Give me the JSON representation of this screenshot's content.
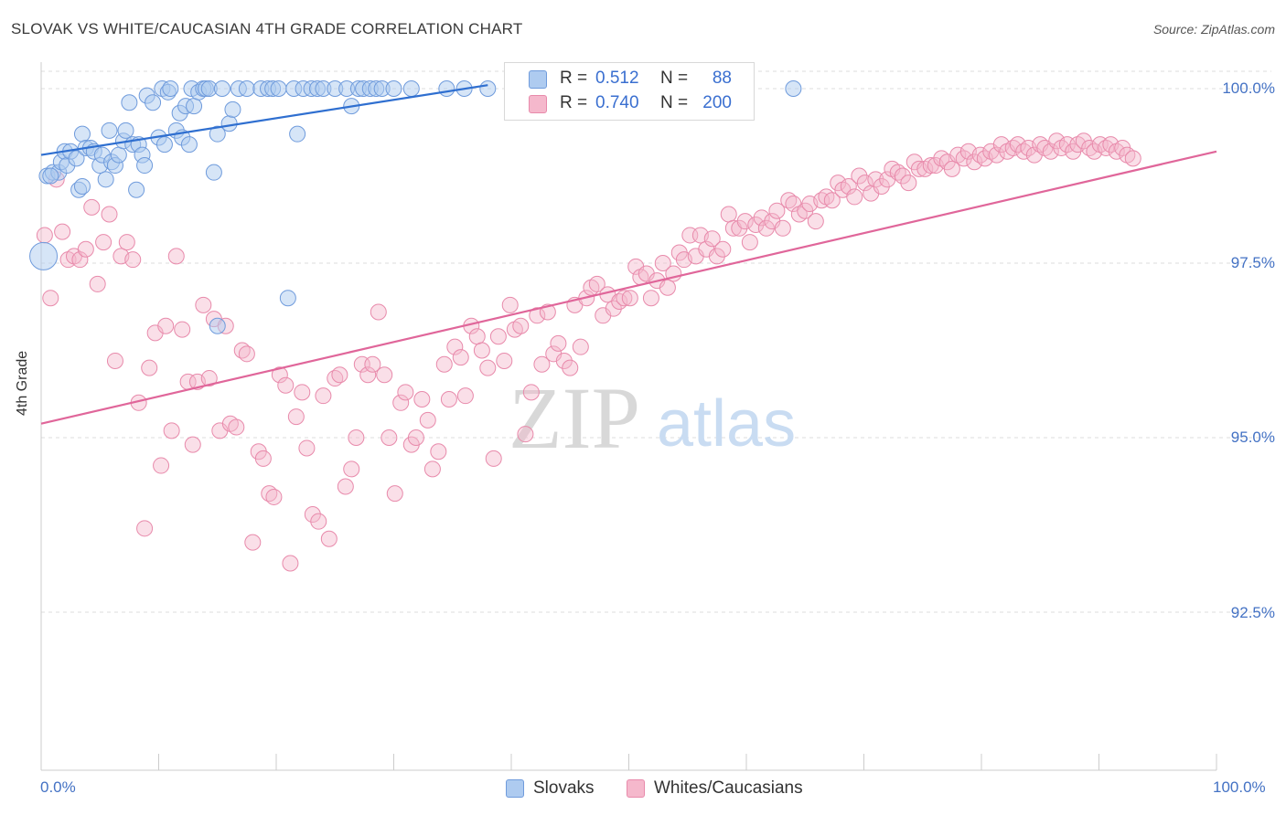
{
  "title": "SLOVAK VS WHITE/CAUCASIAN 4TH GRADE CORRELATION CHART",
  "source": "Source: ZipAtlas.com",
  "watermark": {
    "zip": "ZIP",
    "atlas": "atlas"
  },
  "colors": {
    "blue": "#4a7fd4",
    "blue_fill": "#aecbf0",
    "pink": "#e06090",
    "pink_fill": "#f5b8cc",
    "tick_text": "#4472c4",
    "grid": "#dddddd"
  },
  "legend": {
    "rows": [
      {
        "r_label": "R =",
        "r_value": "0.512",
        "n_label": "N =",
        "n_value": "88"
      },
      {
        "r_label": "R =",
        "r_value": "0.740",
        "n_label": "N =",
        "n_value": "200"
      }
    ]
  },
  "bottom_legend": [
    "Slovaks",
    "Whites/Caucasians"
  ],
  "chart_data": {
    "type": "scatter",
    "title": "SLOVAK VS WHITE/CAUCASIAN 4TH GRADE CORRELATION CHART",
    "xlabel": "",
    "ylabel": "4th Grade",
    "xlim": [
      0,
      100
    ],
    "ylim": [
      90.0,
      100.4
    ],
    "x_tick_labels": [
      "0.0%",
      "100.0%"
    ],
    "y_ticks": [
      100.0,
      97.5,
      95.0,
      92.5
    ],
    "y_tick_labels": [
      "100.0%",
      "97.5%",
      "95.0%",
      "92.5%"
    ],
    "series": [
      {
        "name": "Slovaks",
        "r": 0.512,
        "n": 88,
        "trend": {
          "x": [
            0,
            38
          ],
          "y": [
            99.05,
            100.05
          ]
        },
        "points": [
          [
            0.2,
            97.6
          ],
          [
            0.5,
            98.75
          ],
          [
            1.0,
            98.8
          ],
          [
            1.5,
            98.8
          ],
          [
            1.7,
            98.95
          ],
          [
            2.0,
            99.1
          ],
          [
            2.2,
            98.9
          ],
          [
            2.5,
            99.1
          ],
          [
            3.0,
            99.0
          ],
          [
            3.2,
            98.55
          ],
          [
            3.5,
            99.35
          ],
          [
            3.8,
            99.15
          ],
          [
            4.2,
            99.15
          ],
          [
            4.5,
            99.1
          ],
          [
            5.0,
            98.9
          ],
          [
            5.2,
            99.05
          ],
          [
            5.5,
            98.7
          ],
          [
            5.8,
            99.4
          ],
          [
            6.0,
            98.95
          ],
          [
            6.3,
            98.9
          ],
          [
            6.6,
            99.05
          ],
          [
            7.0,
            99.25
          ],
          [
            7.2,
            99.4
          ],
          [
            7.5,
            99.8
          ],
          [
            7.8,
            99.2
          ],
          [
            8.1,
            98.55
          ],
          [
            8.3,
            99.2
          ],
          [
            8.6,
            99.05
          ],
          [
            8.8,
            98.9
          ],
          [
            9.0,
            99.9
          ],
          [
            9.5,
            99.8
          ],
          [
            10.0,
            99.3
          ],
          [
            10.3,
            100.0
          ],
          [
            10.5,
            99.2
          ],
          [
            10.8,
            99.95
          ],
          [
            11.0,
            100.0
          ],
          [
            11.5,
            99.4
          ],
          [
            11.8,
            99.65
          ],
          [
            12.0,
            99.3
          ],
          [
            12.3,
            99.75
          ],
          [
            12.6,
            99.2
          ],
          [
            12.8,
            100.0
          ],
          [
            13.0,
            99.75
          ],
          [
            13.4,
            99.95
          ],
          [
            13.8,
            100.0
          ],
          [
            14.0,
            100.0
          ],
          [
            14.3,
            100.0
          ],
          [
            14.7,
            98.8
          ],
          [
            15.0,
            99.35
          ],
          [
            15.4,
            100.0
          ],
          [
            16.0,
            99.5
          ],
          [
            16.3,
            99.7
          ],
          [
            16.8,
            100.0
          ],
          [
            17.5,
            100.0
          ],
          [
            18.7,
            100.0
          ],
          [
            19.3,
            100.0
          ],
          [
            19.7,
            100.0
          ],
          [
            20.2,
            100.0
          ],
          [
            21.0,
            97.0
          ],
          [
            21.5,
            100.0
          ],
          [
            21.8,
            99.35
          ],
          [
            22.3,
            100.0
          ],
          [
            23.0,
            100.0
          ],
          [
            23.5,
            100.0
          ],
          [
            24.0,
            100.0
          ],
          [
            25.0,
            100.0
          ],
          [
            26.0,
            100.0
          ],
          [
            26.4,
            99.75
          ],
          [
            27.0,
            100.0
          ],
          [
            27.4,
            100.0
          ],
          [
            28.0,
            100.0
          ],
          [
            28.5,
            100.0
          ],
          [
            29.0,
            100.0
          ],
          [
            30.0,
            100.0
          ],
          [
            31.5,
            100.0
          ],
          [
            34.5,
            100.0
          ],
          [
            36.0,
            100.0
          ],
          [
            38.0,
            100.0
          ],
          [
            44.0,
            100.0
          ],
          [
            45.5,
            100.0
          ],
          [
            48.5,
            100.0
          ],
          [
            51.0,
            100.0
          ],
          [
            56.0,
            100.0
          ],
          [
            60.0,
            100.0
          ],
          [
            64.0,
            100.0
          ],
          [
            15.0,
            96.6
          ],
          [
            3.5,
            98.6
          ],
          [
            0.8,
            98.75
          ]
        ]
      },
      {
        "name": "Whites/Caucasians",
        "r": 0.74,
        "n": 200,
        "trend": {
          "x": [
            0,
            100
          ],
          "y": [
            95.2,
            99.1
          ]
        },
        "points": [
          [
            0.3,
            97.9
          ],
          [
            0.8,
            97.0
          ],
          [
            1.3,
            98.7
          ],
          [
            1.8,
            97.95
          ],
          [
            2.3,
            97.55
          ],
          [
            2.8,
            97.6
          ],
          [
            3.3,
            97.55
          ],
          [
            3.8,
            97.7
          ],
          [
            4.3,
            98.3
          ],
          [
            4.8,
            97.2
          ],
          [
            5.3,
            97.8
          ],
          [
            5.8,
            98.2
          ],
          [
            6.3,
            96.1
          ],
          [
            6.8,
            97.6
          ],
          [
            7.3,
            97.8
          ],
          [
            7.8,
            97.55
          ],
          [
            8.3,
            95.5
          ],
          [
            8.8,
            93.7
          ],
          [
            9.2,
            96.0
          ],
          [
            9.7,
            96.5
          ],
          [
            10.2,
            94.6
          ],
          [
            10.6,
            96.6
          ],
          [
            11.1,
            95.1
          ],
          [
            11.5,
            97.6
          ],
          [
            12.0,
            96.55
          ],
          [
            12.5,
            95.8
          ],
          [
            12.9,
            94.9
          ],
          [
            13.3,
            95.8
          ],
          [
            13.8,
            96.9
          ],
          [
            14.3,
            95.85
          ],
          [
            14.7,
            96.7
          ],
          [
            15.2,
            95.1
          ],
          [
            15.7,
            96.6
          ],
          [
            16.1,
            95.2
          ],
          [
            16.6,
            95.15
          ],
          [
            17.1,
            96.25
          ],
          [
            17.5,
            96.2
          ],
          [
            18.0,
            93.5
          ],
          [
            18.5,
            94.8
          ],
          [
            18.9,
            94.7
          ],
          [
            19.4,
            94.2
          ],
          [
            19.8,
            94.15
          ],
          [
            20.3,
            95.9
          ],
          [
            20.8,
            95.75
          ],
          [
            21.2,
            93.2
          ],
          [
            21.7,
            95.3
          ],
          [
            22.2,
            95.65
          ],
          [
            22.6,
            94.85
          ],
          [
            23.1,
            93.9
          ],
          [
            23.6,
            93.8
          ],
          [
            24.0,
            95.6
          ],
          [
            24.5,
            93.55
          ],
          [
            25.0,
            95.85
          ],
          [
            25.4,
            95.9
          ],
          [
            25.9,
            94.3
          ],
          [
            26.4,
            94.55
          ],
          [
            26.8,
            95.0
          ],
          [
            27.3,
            96.05
          ],
          [
            27.8,
            95.9
          ],
          [
            28.2,
            96.05
          ],
          [
            28.7,
            96.8
          ],
          [
            29.2,
            95.9
          ],
          [
            29.6,
            95.0
          ],
          [
            30.1,
            94.2
          ],
          [
            30.6,
            95.5
          ],
          [
            31.0,
            95.65
          ],
          [
            31.5,
            94.9
          ],
          [
            31.9,
            95.0
          ],
          [
            32.4,
            95.55
          ],
          [
            32.9,
            95.25
          ],
          [
            33.3,
            94.55
          ],
          [
            33.8,
            94.8
          ],
          [
            34.3,
            96.05
          ],
          [
            34.7,
            95.55
          ],
          [
            35.2,
            96.3
          ],
          [
            35.7,
            96.15
          ],
          [
            36.1,
            95.6
          ],
          [
            36.6,
            96.6
          ],
          [
            37.1,
            96.45
          ],
          [
            37.5,
            96.25
          ],
          [
            38.0,
            96.0
          ],
          [
            38.5,
            94.7
          ],
          [
            38.9,
            96.45
          ],
          [
            39.4,
            96.1
          ],
          [
            39.9,
            96.9
          ],
          [
            40.3,
            96.55
          ],
          [
            40.8,
            96.6
          ],
          [
            41.2,
            95.05
          ],
          [
            41.7,
            95.65
          ],
          [
            42.2,
            96.75
          ],
          [
            42.6,
            96.05
          ],
          [
            43.1,
            96.8
          ],
          [
            43.6,
            96.2
          ],
          [
            44.0,
            96.35
          ],
          [
            44.5,
            96.1
          ],
          [
            45.0,
            96.0
          ],
          [
            45.4,
            96.9
          ],
          [
            45.9,
            96.3
          ],
          [
            46.4,
            97.0
          ],
          [
            46.8,
            97.15
          ],
          [
            47.3,
            97.2
          ],
          [
            47.8,
            96.75
          ],
          [
            48.2,
            97.05
          ],
          [
            48.7,
            96.85
          ],
          [
            49.2,
            96.95
          ],
          [
            49.6,
            97.0
          ],
          [
            50.1,
            97.0
          ],
          [
            50.6,
            97.45
          ],
          [
            51.0,
            97.3
          ],
          [
            51.5,
            97.35
          ],
          [
            51.9,
            97.0
          ],
          [
            52.4,
            97.25
          ],
          [
            52.9,
            97.5
          ],
          [
            53.3,
            97.15
          ],
          [
            53.8,
            97.35
          ],
          [
            54.3,
            97.65
          ],
          [
            54.7,
            97.55
          ],
          [
            55.2,
            97.9
          ],
          [
            55.7,
            97.6
          ],
          [
            56.1,
            97.9
          ],
          [
            56.6,
            97.7
          ],
          [
            57.1,
            97.85
          ],
          [
            57.5,
            97.6
          ],
          [
            58.0,
            97.7
          ],
          [
            58.5,
            98.2
          ],
          [
            58.9,
            98.0
          ],
          [
            59.4,
            98.0
          ],
          [
            59.9,
            98.1
          ],
          [
            60.3,
            97.8
          ],
          [
            60.8,
            98.05
          ],
          [
            61.3,
            98.15
          ],
          [
            61.7,
            98.0
          ],
          [
            62.2,
            98.1
          ],
          [
            62.6,
            98.25
          ],
          [
            63.1,
            98.0
          ],
          [
            63.6,
            98.4
          ],
          [
            64.0,
            98.35
          ],
          [
            64.5,
            98.2
          ],
          [
            65.0,
            98.25
          ],
          [
            65.4,
            98.35
          ],
          [
            65.9,
            98.1
          ],
          [
            66.4,
            98.4
          ],
          [
            66.8,
            98.45
          ],
          [
            67.3,
            98.4
          ],
          [
            67.8,
            98.65
          ],
          [
            68.2,
            98.55
          ],
          [
            68.7,
            98.6
          ],
          [
            69.2,
            98.45
          ],
          [
            69.6,
            98.75
          ],
          [
            70.1,
            98.65
          ],
          [
            70.6,
            98.5
          ],
          [
            71.0,
            98.7
          ],
          [
            71.5,
            98.6
          ],
          [
            72.0,
            98.7
          ],
          [
            72.4,
            98.85
          ],
          [
            72.9,
            98.8
          ],
          [
            73.3,
            98.75
          ],
          [
            73.8,
            98.65
          ],
          [
            74.3,
            98.95
          ],
          [
            74.7,
            98.85
          ],
          [
            75.2,
            98.85
          ],
          [
            75.7,
            98.9
          ],
          [
            76.1,
            98.9
          ],
          [
            76.6,
            99.0
          ],
          [
            77.1,
            98.95
          ],
          [
            77.5,
            98.85
          ],
          [
            78.0,
            99.05
          ],
          [
            78.5,
            99.0
          ],
          [
            78.9,
            99.1
          ],
          [
            79.4,
            98.95
          ],
          [
            79.9,
            99.05
          ],
          [
            80.3,
            99.0
          ],
          [
            80.8,
            99.1
          ],
          [
            81.3,
            99.05
          ],
          [
            81.7,
            99.2
          ],
          [
            82.2,
            99.1
          ],
          [
            82.7,
            99.15
          ],
          [
            83.1,
            99.2
          ],
          [
            83.6,
            99.1
          ],
          [
            84.0,
            99.15
          ],
          [
            84.5,
            99.05
          ],
          [
            85.0,
            99.2
          ],
          [
            85.4,
            99.15
          ],
          [
            85.9,
            99.1
          ],
          [
            86.4,
            99.25
          ],
          [
            86.8,
            99.15
          ],
          [
            87.3,
            99.2
          ],
          [
            87.8,
            99.1
          ],
          [
            88.2,
            99.2
          ],
          [
            88.7,
            99.25
          ],
          [
            89.2,
            99.15
          ],
          [
            89.6,
            99.1
          ],
          [
            90.1,
            99.2
          ],
          [
            90.6,
            99.15
          ],
          [
            91.0,
            99.2
          ],
          [
            91.5,
            99.1
          ],
          [
            92.0,
            99.15
          ],
          [
            92.4,
            99.05
          ],
          [
            92.9,
            99.0
          ]
        ]
      }
    ]
  }
}
